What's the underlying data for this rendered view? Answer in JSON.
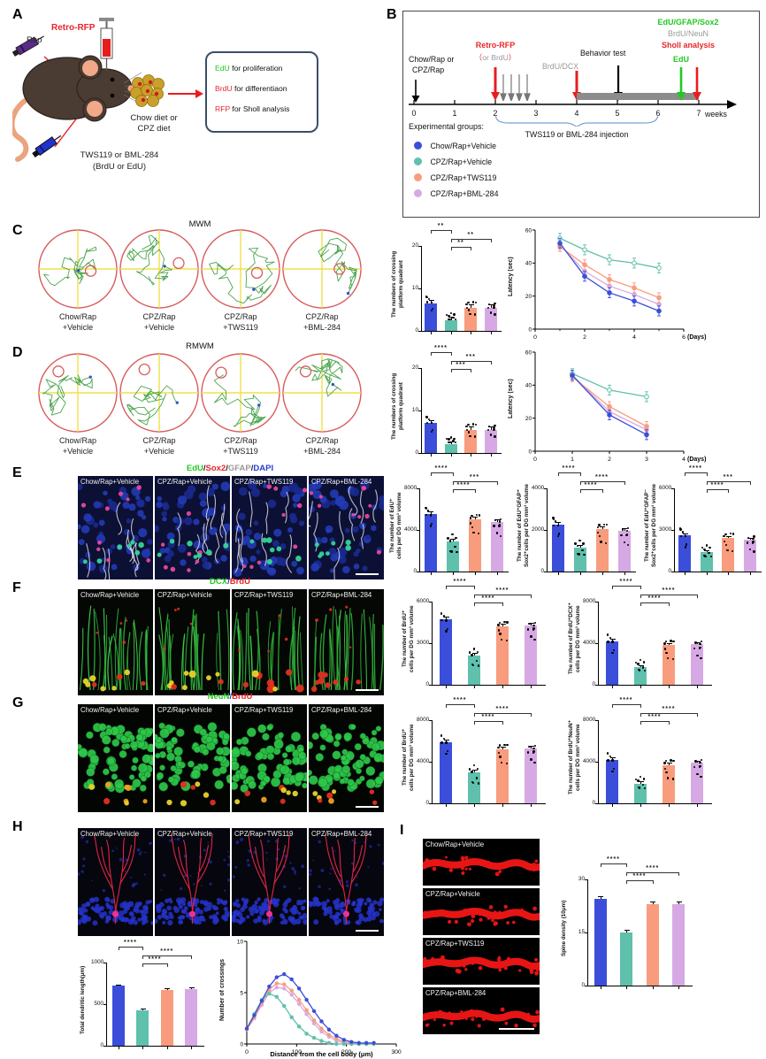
{
  "colors": {
    "group_colors": [
      "#3b4eda",
      "#5fc0ac",
      "#f89c7d",
      "#d7a9e4"
    ],
    "red": "#e8262b",
    "green": "#22c822",
    "gray": "#9a9a9a",
    "dapi_blue": "#2a3cd8"
  },
  "groups": [
    "Chow/Rap+Vehicle",
    "CPZ/Rap+Vehicle",
    "CPZ/Rap+TWS119",
    "CPZ/Rap+BML-284"
  ],
  "groups_2line": [
    [
      "Chow/Rap",
      "+Vehicle"
    ],
    [
      "CPZ/Rap",
      "+Vehicle"
    ],
    [
      "CPZ/Rap",
      "+TWS119"
    ],
    [
      "CPZ/Rap",
      "+BML-284"
    ]
  ],
  "panel_a": {
    "label": "A",
    "rap": "Rap",
    "retro_rfp": "Retro-RFP",
    "tws_line1": "TWS119 or BML-284",
    "tws_line2": "(BrdU or EdU)",
    "diet_line1": "Chow diet or",
    "diet_line2": "CPZ diet",
    "box_lines": [
      {
        "key": "EdU",
        "key_color": "#22c822",
        "rest": " for proliferation"
      },
      {
        "key": "BrdU",
        "key_color": "#e8262b",
        "rest": " for differentiaon"
      },
      {
        "key": "RFP",
        "key_color": "#e8262b",
        "rest": " for Sholl analysis"
      }
    ]
  },
  "panel_b": {
    "label": "B",
    "week_ticks": [
      "0",
      "1",
      "2",
      "3",
      "4",
      "5",
      "6",
      "7"
    ],
    "weeks_label": "weeks",
    "chow_line1": "Chow/Rap or",
    "chow_line2": "CPZ/Rap",
    "retro_label": "Retro-RFP",
    "retro_sub": [
      {
        "t": "（",
        "c": "#e8262b"
      },
      {
        "t": "or BrdU",
        "c": "#9a9a9a"
      },
      {
        "t": "）",
        "c": "#e8262b"
      }
    ],
    "brdu_dcx": "BrdU/DCX",
    "behavior": "Behavior test",
    "right_labels": [
      {
        "t": "EdU/GFAP/Sox2",
        "c": "#22c822"
      },
      {
        "t": "BrdU/NeuN",
        "c": "#9a9a9a"
      },
      {
        "t": "Sholl analysis",
        "c": "#e8262b"
      },
      {
        "t": "EdU",
        "c": "#22c822"
      }
    ],
    "injection_label": "TWS119 or BML-284 injection",
    "legend_title": "Experimental groups:",
    "legend": [
      {
        "label": "Chow/Rap+Vehicle",
        "color": "#3b4eda"
      },
      {
        "label": "CPZ/Rap+Vehicle",
        "color": "#5fc0ac"
      },
      {
        "label": "CPZ/Rap+TWS119",
        "color": "#f89c7d"
      },
      {
        "label": "CPZ/Rap+BML-284",
        "color": "#d7a9e4"
      }
    ]
  },
  "panel_c": {
    "label": "C",
    "title": "MWM"
  },
  "panel_d": {
    "label": "D",
    "title": "RMWM"
  },
  "panel_e": {
    "label": "E",
    "title_parts": [
      {
        "t": "EdU",
        "c": "#22c822"
      },
      {
        "t": "/",
        "c": "#222222"
      },
      {
        "t": "Sox2",
        "c": "#e8262b"
      },
      {
        "t": "/",
        "c": "#222222"
      },
      {
        "t": "GFAP",
        "c": "#9a9a9a"
      },
      {
        "t": "/",
        "c": "#222222"
      },
      {
        "t": "DAPI",
        "c": "#2a3cd8"
      }
    ]
  },
  "panel_f": {
    "label": "F",
    "title_parts": [
      {
        "t": "DCX",
        "c": "#22c822"
      },
      {
        "t": "/",
        "c": "#2a3cd8"
      },
      {
        "t": "BrdU",
        "c": "#e8262b"
      }
    ]
  },
  "panel_g": {
    "label": "G",
    "title_parts": [
      {
        "t": "NeuN",
        "c": "#22c822"
      },
      {
        "t": "/",
        "c": "#2a3cd8"
      },
      {
        "t": "BrdU",
        "c": "#e8262b"
      }
    ]
  },
  "panel_h": {
    "label": "H"
  },
  "panel_i": {
    "label": "I"
  },
  "chart_data": {
    "c_bar": {
      "type": "bar",
      "ylabel": "The numbers of crossing\nplatform quadrant",
      "ylim": [
        0,
        20
      ],
      "yticks": [
        0,
        10,
        20
      ],
      "categories": [
        "Chow/Rap+Vehicle",
        "CPZ/Rap+Vehicle",
        "CPZ/Rap+TWS119",
        "CPZ/Rap+BML-284"
      ],
      "values": [
        6.5,
        2.5,
        5.5,
        5.5
      ],
      "err": 0.8,
      "dots": true,
      "sig": [
        {
          "a": 0,
          "b": 1,
          "label": "**",
          "row": 0
        },
        {
          "a": 1,
          "b": 3,
          "label": "**",
          "row": 1
        },
        {
          "a": 1,
          "b": 2,
          "label": "**",
          "row": 2
        }
      ]
    },
    "c_line": {
      "type": "line",
      "ylabel": "Latency (sec)",
      "xlabel": "(Days)",
      "xlabel_end": true,
      "ylim": [
        0,
        60
      ],
      "yticks": [
        0,
        20,
        40,
        60
      ],
      "xlim": [
        0,
        6
      ],
      "xticks": [
        0,
        2,
        4,
        6
      ],
      "xminor": [
        1,
        3,
        5
      ],
      "err": 3,
      "x": [
        1,
        2,
        3,
        4,
        5
      ],
      "series": [
        {
          "name": "Chow/Rap+Vehicle",
          "color": "#3b4eda",
          "values": [
            52,
            32,
            22,
            17,
            11
          ]
        },
        {
          "name": "CPZ/Rap+Vehicle",
          "color": "#5fc0ac",
          "open": true,
          "values": [
            55,
            48,
            42,
            40,
            37
          ]
        },
        {
          "name": "CPZ/Rap+TWS119",
          "color": "#f89c7d",
          "values": [
            50,
            39,
            30,
            25,
            19
          ]
        },
        {
          "name": "CPZ/Rap+BML-284",
          "color": "#d7a9e4",
          "values": [
            51,
            35,
            26,
            21,
            15
          ]
        }
      ]
    },
    "d_bar": {
      "type": "bar",
      "ylabel": "The numbers of crossing\nplatform quadrant",
      "ylim": [
        0,
        20
      ],
      "yticks": [
        0,
        10,
        20
      ],
      "categories": [
        "Chow/Rap+Vehicle",
        "CPZ/Rap+Vehicle",
        "CPZ/Rap+TWS119",
        "CPZ/Rap+BML-284"
      ],
      "values": [
        7,
        2,
        5.5,
        5.5
      ],
      "err": 0.8,
      "dots": true,
      "sig": [
        {
          "a": 0,
          "b": 1,
          "label": "****",
          "row": 0
        },
        {
          "a": 1,
          "b": 3,
          "label": "***",
          "row": 1
        },
        {
          "a": 1,
          "b": 2,
          "label": "***",
          "row": 2
        }
      ]
    },
    "d_line": {
      "type": "line",
      "ylabel": "Latency (sec)",
      "xlabel": "(Days)",
      "xlabel_end": true,
      "ylim": [
        0,
        60
      ],
      "yticks": [
        0,
        20,
        40,
        60
      ],
      "xlim": [
        0,
        4
      ],
      "xticks": [
        0,
        1,
        2,
        3,
        4
      ],
      "xminor": [],
      "err": 3,
      "x": [
        1,
        2,
        3
      ],
      "series": [
        {
          "name": "Chow/Rap+Vehicle",
          "color": "#3b4eda",
          "values": [
            46,
            22,
            10
          ]
        },
        {
          "name": "CPZ/Rap+Vehicle",
          "color": "#5fc0ac",
          "open": true,
          "values": [
            47,
            37,
            33
          ]
        },
        {
          "name": "CPZ/Rap+TWS119",
          "color": "#f89c7d",
          "values": [
            45,
            27,
            15
          ]
        },
        {
          "name": "CPZ/Rap+BML-284",
          "color": "#d7a9e4",
          "values": [
            46,
            24,
            13
          ]
        }
      ]
    },
    "e1_bar": {
      "type": "bar",
      "ylabel": "The number of EdU⁺\ncells per DG mm³ volume",
      "ylim": [
        0,
        8000
      ],
      "yticks": [
        0,
        4000,
        8000
      ],
      "categories": [
        "Chow/Rap+Vehicle",
        "CPZ/Rap+Vehicle",
        "CPZ/Rap+TWS119",
        "CPZ/Rap+BML-284"
      ],
      "values": [
        5500,
        2900,
        5000,
        4800
      ],
      "err": 250,
      "dots": true,
      "sig": [
        {
          "a": 0,
          "b": 1,
          "label": "****",
          "row": 0
        },
        {
          "a": 1,
          "b": 3,
          "label": "***",
          "row": 1
        },
        {
          "a": 1,
          "b": 2,
          "label": "****",
          "row": 2
        }
      ]
    },
    "e2_bar": {
      "type": "bar",
      "ylabel": "The number of EdU⁺GFAP⁺\nSox2⁺cells per DG mm³ volume",
      "ylim": [
        0,
        4000
      ],
      "yticks": [
        0,
        2000,
        4000
      ],
      "categories": [
        "Chow/Rap+Vehicle",
        "CPZ/Rap+Vehicle",
        "CPZ/Rap+TWS119",
        "CPZ/Rap+BML-284"
      ],
      "values": [
        2250,
        1150,
        2050,
        1950
      ],
      "err": 130,
      "dots": true,
      "sig": [
        {
          "a": 0,
          "b": 1,
          "label": "****",
          "row": 0
        },
        {
          "a": 1,
          "b": 3,
          "label": "****",
          "row": 1
        },
        {
          "a": 1,
          "b": 2,
          "label": "****",
          "row": 2
        }
      ]
    },
    "e3_bar": {
      "type": "bar",
      "ylabel": "The number of EdU⁺GFAP⁻\nSox2⁺cells per DG mm³ volume",
      "ylim": [
        0,
        6000
      ],
      "yticks": [
        0,
        3000,
        6000
      ],
      "categories": [
        "Chow/Rap+Vehicle",
        "CPZ/Rap+Vehicle",
        "CPZ/Rap+TWS119",
        "CPZ/Rap+BML-284"
      ],
      "values": [
        2600,
        1400,
        2400,
        2300
      ],
      "err": 150,
      "dots": true,
      "sig": [
        {
          "a": 0,
          "b": 1,
          "label": "****",
          "row": 0
        },
        {
          "a": 1,
          "b": 3,
          "label": "***",
          "row": 1
        },
        {
          "a": 1,
          "b": 2,
          "label": "****",
          "row": 2
        }
      ]
    },
    "f1_bar": {
      "type": "bar",
      "ylabel": "The number of BrdU⁺\ncells per DG mm³ volume",
      "ylim": [
        0,
        6000
      ],
      "yticks": [
        0,
        3000,
        6000
      ],
      "categories": [
        "Chow/Rap+Vehicle",
        "CPZ/Rap+Vehicle",
        "CPZ/Rap+TWS119",
        "CPZ/Rap+BML-284"
      ],
      "values": [
        4700,
        2100,
        4200,
        4300
      ],
      "err": 200,
      "dots": true,
      "sig": [
        {
          "a": 0,
          "b": 1,
          "label": "****",
          "row": 0
        },
        {
          "a": 1,
          "b": 3,
          "label": "****",
          "row": 1
        },
        {
          "a": 1,
          "b": 2,
          "label": "****",
          "row": 2
        }
      ]
    },
    "f2_bar": {
      "type": "bar",
      "ylabel": "The number of BrdU⁺DCX⁺\ncells per DG mm³ volume",
      "ylim": [
        0,
        8000
      ],
      "yticks": [
        0,
        4000,
        8000
      ],
      "categories": [
        "Chow/Rap+Vehicle",
        "CPZ/Rap+Vehicle",
        "CPZ/Rap+TWS119",
        "CPZ/Rap+BML-284"
      ],
      "values": [
        4200,
        1700,
        3800,
        3900
      ],
      "err": 200,
      "dots": true,
      "sig": [
        {
          "a": 0,
          "b": 1,
          "label": "****",
          "row": 0
        },
        {
          "a": 1,
          "b": 3,
          "label": "****",
          "row": 1
        },
        {
          "a": 1,
          "b": 2,
          "label": "****",
          "row": 2
        }
      ]
    },
    "g1_bar": {
      "type": "bar",
      "ylabel": "The number of BrdU⁺\ncells per DG mm³ volume",
      "ylim": [
        0,
        8000
      ],
      "yticks": [
        0,
        4000,
        8000
      ],
      "categories": [
        "Chow/Rap+Vehicle",
        "CPZ/Rap+Vehicle",
        "CPZ/Rap+TWS119",
        "CPZ/Rap+BML-284"
      ],
      "values": [
        5900,
        3000,
        5200,
        5300
      ],
      "err": 220,
      "dots": true,
      "sig": [
        {
          "a": 0,
          "b": 1,
          "label": "****",
          "row": 0
        },
        {
          "a": 1,
          "b": 3,
          "label": "****",
          "row": 1
        },
        {
          "a": 1,
          "b": 2,
          "label": "****",
          "row": 2
        }
      ]
    },
    "g2_bar": {
      "type": "bar",
      "ylabel": "The number of BrdU⁺NeuN⁺\ncells per DG mm³ volume",
      "ylim": [
        0,
        8000
      ],
      "yticks": [
        0,
        4000,
        8000
      ],
      "categories": [
        "Chow/Rap+Vehicle",
        "CPZ/Rap+Vehicle",
        "CPZ/Rap+TWS119",
        "CPZ/Rap+BML-284"
      ],
      "values": [
        4200,
        1900,
        3700,
        3900
      ],
      "err": 200,
      "dots": true,
      "sig": [
        {
          "a": 0,
          "b": 1,
          "label": "****",
          "row": 0
        },
        {
          "a": 1,
          "b": 3,
          "label": "****",
          "row": 1
        },
        {
          "a": 1,
          "b": 2,
          "label": "****",
          "row": 2
        }
      ]
    },
    "h_bar": {
      "type": "bar",
      "ylabel": "Total dendritic length(μm)",
      "ylim": [
        0,
        1000
      ],
      "yticks": [
        0,
        500,
        1000
      ],
      "categories": [
        "Chow/Rap+Vehicle",
        "CPZ/Rap+Vehicle",
        "CPZ/Rap+TWS119",
        "CPZ/Rap+BML-284"
      ],
      "values": [
        720,
        430,
        670,
        680
      ],
      "err": 18,
      "dots": false,
      "sig": [
        {
          "a": 0,
          "b": 1,
          "label": "****",
          "row": 0
        },
        {
          "a": 1,
          "b": 3,
          "label": "****",
          "row": 1
        },
        {
          "a": 1,
          "b": 2,
          "label": "****",
          "row": 2
        }
      ]
    },
    "h_line": {
      "type": "line",
      "ylabel": "Number of crossings",
      "xlabel": "Distance from the cell body (μm)",
      "xlabel_end": false,
      "ylim": [
        0,
        10
      ],
      "yticks": [
        0,
        5,
        10
      ],
      "xlim": [
        0,
        300
      ],
      "xticks": [
        0,
        100,
        200,
        300
      ],
      "xminor": [],
      "marker": 1.7,
      "x": [
        0,
        15,
        30,
        45,
        60,
        75,
        90,
        105,
        120,
        135,
        150,
        165,
        180,
        195,
        210,
        225,
        240,
        255
      ],
      "series": [
        {
          "name": "Chow/Rap+Vehicle",
          "color": "#3b4eda",
          "values": [
            1.5,
            2.8,
            4.2,
            5.6,
            6.5,
            6.8,
            6.3,
            5.4,
            4.3,
            3.2,
            2.2,
            1.4,
            0.8,
            0.4,
            0.2,
            0.1,
            0.1,
            0.1
          ]
        },
        {
          "name": "CPZ/Rap+Vehicle",
          "color": "#5fc0ac",
          "values": [
            1.5,
            2.9,
            4.3,
            4.9,
            4.6,
            3.7,
            2.6,
            1.7,
            1.0,
            0.6,
            0.3,
            0.1,
            0,
            0,
            0,
            0,
            0,
            0
          ]
        },
        {
          "name": "CPZ/Rap+TWS119",
          "color": "#f89c7d",
          "values": [
            1.4,
            2.6,
            4.0,
            5.3,
            5.9,
            5.8,
            5.2,
            4.3,
            3.3,
            2.3,
            1.5,
            0.9,
            0.5,
            0.2,
            0.1,
            0,
            0,
            0
          ]
        },
        {
          "name": "CPZ/Rap+BML-284",
          "color": "#d7a9e4",
          "values": [
            1.4,
            2.5,
            3.8,
            5.0,
            5.5,
            5.4,
            4.8,
            3.9,
            2.9,
            2.0,
            1.2,
            0.7,
            0.3,
            0.1,
            0,
            0,
            0,
            0
          ]
        }
      ]
    },
    "i_bar": {
      "type": "bar",
      "ylabel": "Spine density (10μm)",
      "ylim": [
        0,
        30
      ],
      "yticks": [
        0,
        15,
        30
      ],
      "categories": [
        "Chow/Rap+Vehicle",
        "CPZ/Rap+Vehicle",
        "CPZ/Rap+TWS119",
        "CPZ/Rap+BML-284"
      ],
      "values": [
        24.5,
        15,
        23,
        23
      ],
      "err": 0.8,
      "dots": false,
      "sig": [
        {
          "a": 0,
          "b": 1,
          "label": "****",
          "row": 0
        },
        {
          "a": 1,
          "b": 3,
          "label": "****",
          "row": 1
        },
        {
          "a": 1,
          "b": 2,
          "label": "****",
          "row": 2
        }
      ]
    },
    "mazes": {
      "mwm": {
        "platforms": [
          [
            0.33,
            0.05
          ],
          [
            0.5,
            -0.15
          ],
          [
            0.42,
            0.1
          ],
          [
            0.45,
            0.0
          ]
        ]
      },
      "rmwm": {
        "platforms": [
          [
            -0.5,
            -0.55
          ],
          [
            -0.38,
            -0.6
          ],
          [
            -0.5,
            -0.52
          ],
          [
            -0.42,
            -0.55
          ]
        ]
      }
    }
  }
}
